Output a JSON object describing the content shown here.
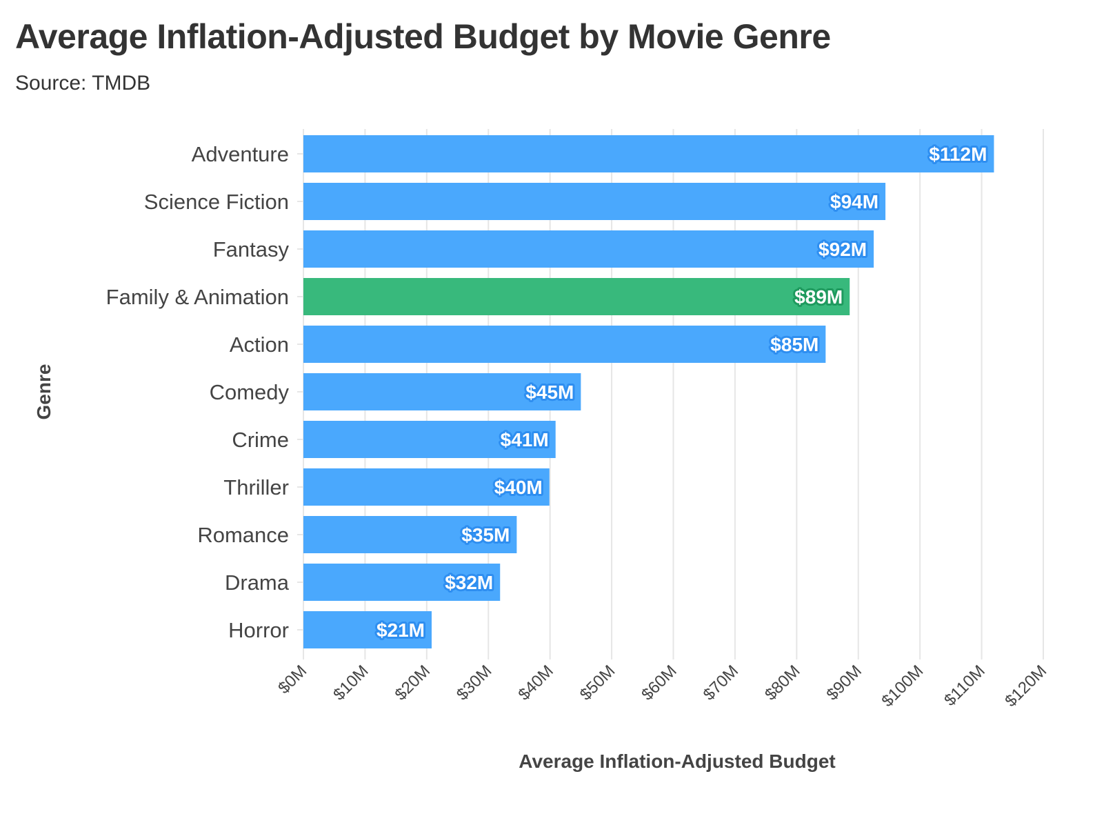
{
  "chart_data": {
    "type": "bar",
    "orientation": "horizontal",
    "title": "Average Inflation-Adjusted Budget by Movie Genre",
    "subtitle": "Source: TMDB",
    "xlabel": "Average Inflation-Adjusted Budget",
    "ylabel": "Genre",
    "xlim": [
      0,
      120
    ],
    "x_ticks": [
      0,
      10,
      20,
      30,
      40,
      50,
      60,
      70,
      80,
      90,
      100,
      110,
      120
    ],
    "x_tick_labels": [
      "$0M",
      "$10M",
      "$20M",
      "$30M",
      "$40M",
      "$50M",
      "$60M",
      "$70M",
      "$80M",
      "$90M",
      "$100M",
      "$110M",
      "$120M"
    ],
    "grid": true,
    "value_unit": "$M",
    "categories": [
      "Adventure",
      "Science Fiction",
      "Fantasy",
      "Family & Animation",
      "Action",
      "Comedy",
      "Crime",
      "Thriller",
      "Romance",
      "Drama",
      "Horror"
    ],
    "values": [
      112,
      94.4,
      92.5,
      88.6,
      84.7,
      45,
      40.9,
      39.9,
      34.6,
      31.9,
      20.8
    ],
    "data_labels": [
      "$112M",
      "$94M",
      "$92M",
      "$89M",
      "$85M",
      "$45M",
      "$41M",
      "$40M",
      "$35M",
      "$32M",
      "$21M"
    ],
    "highlight_category": "Family & Animation",
    "colors": {
      "default_bar": "#4aa8fd",
      "highlight_bar": "#38b97c",
      "default_label_outline": "#2e8ef0",
      "highlight_label_outline": "#1e9a5e",
      "grid": "#e6e6e6",
      "text": "#333333"
    }
  }
}
